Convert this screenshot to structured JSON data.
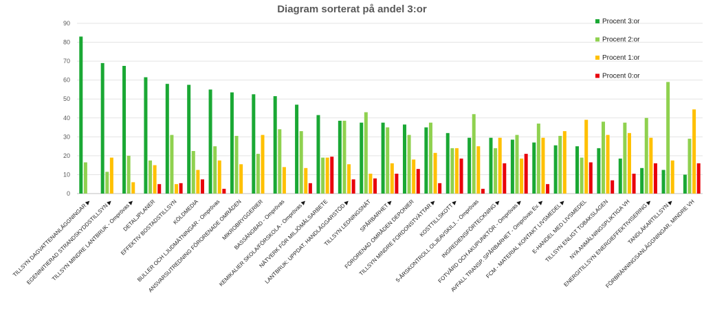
{
  "chart_data": {
    "type": "bar",
    "title": "Diagram sorterat på andel 3:or",
    "ylim": [
      0,
      90
    ],
    "yticks": [
      0,
      10,
      20,
      30,
      40,
      50,
      60,
      70,
      80,
      90
    ],
    "legend_position": "top-right",
    "categories": [
      "TILLSYN DAGVATTENANLÄGGNINGAR ▶",
      "EGENINITIERAD STRANDSKYDDSTILLSYN ▶",
      "TILLSYN MINDRE LANTBRUK - Omprövas ▶",
      "DETALJPLANER",
      "EFFEKTIV BOSTADSTILLSYN",
      "KÖLDMEDIA",
      "BULLER OCH LJUDMÄTNINGAR - Omprövas",
      "ANSVARSUTREDNING FÖRORENADE OMRÅDEN",
      "MIKROBRYGGERIER",
      "BASSÄNGBAD - Omprövas",
      "KEMIKALIER SKOLA/FÖRSKOLA - Omprövas ▶",
      "NÄTVERK FÖR MILJÖMÅLSARBETE",
      "LANTBRUK: UPPDAT. HANDLÄGGARSTÖD ▶",
      "TILLSYN LEDNINGSNÄT",
      "SPÅRBARHET ▶",
      "FÖRORENAD OMRÅDEN DEPONIER",
      "TILLSYN MINDRE FORDONSTVÄTTAR ▶",
      "KOSTTILLSKOTT ▶",
      "5-ÅRSKONTROLL OLJEAVSKILJ. - Omprövas",
      "INGREDIENSFÖRTECKNING ▶",
      "FOTVÅRD OCH AKUPUNKTÖR - Omprövas ▶",
      "AVFALL TRANSP. SPÅRBARHET - Omprövas Ev. ▶",
      "FCM - MATERIAL KONTAKT LIVSMEDEL ▶",
      "E-HANDEL MED LIVSMEDEL",
      "TILLSYN ENLIGT TOBAKSLAGEN",
      "NYA ANMÄLNINGSPLIKTIGA VH",
      "ENERGITILLSYN ENERGIEFFEKTIVISERING ▶",
      "TANDLÄKARTILLSYN ▶",
      "FÖRBRÄNNINGSANLÄGGNINGAR, MINDRE VH"
    ],
    "series": [
      {
        "name": "Procent 3:or",
        "color": "#1aa834",
        "values": [
          83,
          69,
          67.5,
          61.5,
          58,
          57.5,
          55,
          53.5,
          52.5,
          51.5,
          47,
          41.5,
          38.5,
          37.5,
          37.5,
          36.5,
          35,
          32,
          29.5,
          29.5,
          28.5,
          27,
          25.5,
          25,
          24,
          18.5,
          13.5,
          12.5,
          10
        ]
      },
      {
        "name": "Procent 2:or",
        "color": "#8fd14f",
        "values": [
          16.5,
          11.5,
          20,
          17.5,
          31,
          22.5,
          25,
          30.5,
          21,
          34,
          33,
          19,
          38.5,
          43,
          35,
          31,
          37.5,
          24,
          42,
          24,
          31,
          37,
          30.5,
          19,
          38,
          37.5,
          40,
          59,
          29
        ]
      },
      {
        "name": "Procent 1:or",
        "color": "#ffc000",
        "values": [
          0,
          19,
          6,
          15,
          5,
          12.5,
          17.5,
          15.5,
          31,
          14,
          13.5,
          19,
          15.5,
          10.5,
          16,
          18,
          21.5,
          24,
          25,
          29.5,
          18.5,
          29.5,
          33,
          39,
          31,
          32,
          29.5,
          17.5,
          44.5
        ]
      },
      {
        "name": "Procent 0:or",
        "color": "#e8000b",
        "values": [
          0,
          0,
          0,
          5,
          5.5,
          7.5,
          2.5,
          0,
          0,
          0,
          5.5,
          19.5,
          7.5,
          8,
          10.5,
          13,
          5.5,
          18.5,
          2.5,
          16,
          21,
          5,
          0,
          16.5,
          7,
          10.5,
          16,
          0,
          16
        ]
      }
    ]
  }
}
